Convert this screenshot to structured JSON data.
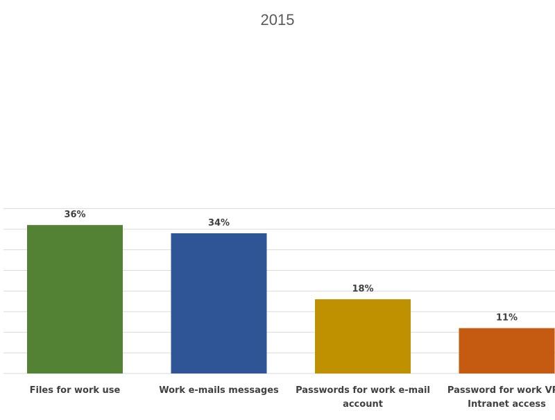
{
  "chart_data": {
    "type": "bar",
    "title": "2015",
    "xlabel": "",
    "ylabel": "",
    "categories": [
      [
        "Files for work use"
      ],
      [
        "Work e-mails messages"
      ],
      [
        "Passwords for work e-mail",
        "account"
      ],
      [
        "Password for work VPN",
        "Intranet access"
      ]
    ],
    "values": [
      36,
      34,
      18,
      11
    ],
    "value_labels": [
      "36%",
      "34%",
      "18%",
      "11%"
    ],
    "colors": [
      "#548235",
      "#2f5597",
      "#bf9000",
      "#c55a11"
    ],
    "ylim": [
      0,
      40
    ],
    "grid": true,
    "legend": "none"
  }
}
